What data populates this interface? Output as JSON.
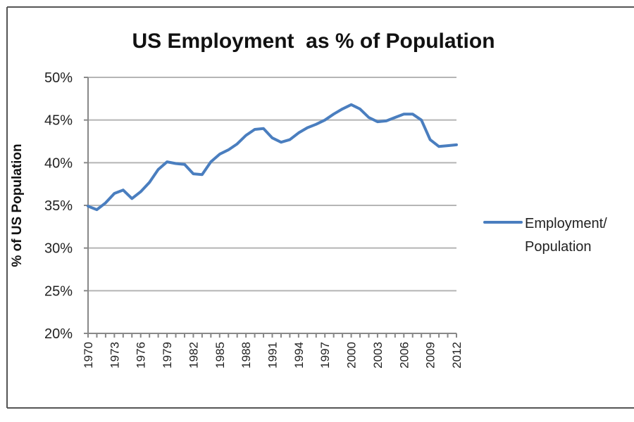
{
  "chart_data": {
    "type": "line",
    "title": "US Employment  as % of Population",
    "xlabel": "",
    "ylabel": "% of US Population",
    "ylim": [
      20,
      50
    ],
    "yticks": [
      20,
      25,
      30,
      35,
      40,
      45,
      50
    ],
    "ytick_labels": [
      "20%",
      "25%",
      "30%",
      "35%",
      "40%",
      "45%",
      "50%"
    ],
    "xlim": [
      1970,
      2012
    ],
    "xticks": [
      1970,
      1973,
      1976,
      1979,
      1982,
      1985,
      1988,
      1991,
      1994,
      1997,
      2000,
      2003,
      2006,
      2009,
      2012
    ],
    "xtick_labels": [
      "1970",
      "1973",
      "1976",
      "1979",
      "1982",
      "1985",
      "1988",
      "1991",
      "1994",
      "1997",
      "2000",
      "2003",
      "2006",
      "2009",
      "2012"
    ],
    "grid": true,
    "legend_position": "right",
    "series": [
      {
        "name": "Employment/ Population",
        "color": "#4a7ebf",
        "x": [
          1970,
          1971,
          1972,
          1973,
          1974,
          1975,
          1976,
          1977,
          1978,
          1979,
          1980,
          1981,
          1982,
          1983,
          1984,
          1985,
          1986,
          1987,
          1988,
          1989,
          1990,
          1991,
          1992,
          1993,
          1994,
          1995,
          1996,
          1997,
          1998,
          1999,
          2000,
          2001,
          2002,
          2003,
          2004,
          2005,
          2006,
          2007,
          2008,
          2009,
          2010,
          2011,
          2012
        ],
        "values": [
          34.9,
          34.5,
          35.3,
          36.4,
          36.8,
          35.8,
          36.6,
          37.7,
          39.2,
          40.1,
          39.9,
          39.8,
          38.7,
          38.6,
          40.1,
          41.0,
          41.5,
          42.2,
          43.2,
          43.9,
          44.0,
          42.9,
          42.4,
          42.7,
          43.5,
          44.1,
          44.5,
          45.0,
          45.7,
          46.3,
          46.8,
          46.3,
          45.3,
          44.8,
          44.9,
          45.3,
          45.7,
          45.7,
          45.0,
          42.7,
          41.9,
          42.0,
          42.1
        ],
        "legend_label_lines": [
          "Employment/",
          "Population"
        ]
      }
    ]
  }
}
